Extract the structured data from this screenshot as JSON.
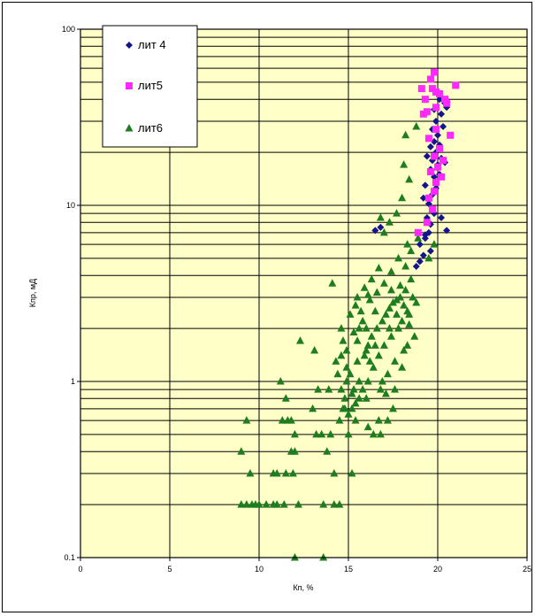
{
  "colors": {
    "plot_bg": "#ffffc8",
    "grid": "#000000",
    "lit4": "#14148c",
    "lit5": "#ff28ff",
    "lit6": "#1e7d1e"
  },
  "chart_data": {
    "type": "scatter",
    "xlabel": "Кп, %",
    "ylabel": "Кпр, мД",
    "xlim": [
      0,
      25
    ],
    "ylim": [
      0.1,
      100
    ],
    "y_scale": "log",
    "grid": true,
    "legend_position": "top-left",
    "x_ticks": [
      "0",
      "5",
      "10",
      "15",
      "20",
      "25"
    ],
    "y_ticks": [
      "0.1",
      "1",
      "10",
      "100"
    ],
    "series": [
      {
        "name": "лит 4",
        "marker": "diamond",
        "color": "#14148c",
        "points": [
          [
            16.5,
            7.2
          ],
          [
            16.8,
            7.5
          ],
          [
            18.8,
            4.5
          ],
          [
            19.0,
            4.8
          ],
          [
            19.2,
            5.2
          ],
          [
            19.0,
            6.0
          ],
          [
            19.3,
            6.5
          ],
          [
            19.5,
            7.0
          ],
          [
            19.6,
            7.8
          ],
          [
            19.4,
            8.5
          ],
          [
            19.8,
            9.0
          ],
          [
            19.5,
            10.2
          ],
          [
            19.2,
            11.0
          ],
          [
            19.7,
            11.5
          ],
          [
            19.9,
            12.5
          ],
          [
            19.3,
            13.0
          ],
          [
            19.8,
            14.5
          ],
          [
            20.1,
            15.0
          ],
          [
            19.6,
            16.0
          ],
          [
            20.0,
            17.0
          ],
          [
            19.7,
            18.0
          ],
          [
            20.2,
            18.5
          ],
          [
            20.4,
            17.5
          ],
          [
            19.4,
            19.0
          ],
          [
            19.9,
            20.0
          ],
          [
            19.6,
            21.5
          ],
          [
            20.1,
            22.0
          ],
          [
            19.8,
            23.0
          ],
          [
            19.5,
            24.0
          ],
          [
            20.0,
            25.0
          ],
          [
            19.7,
            27.0
          ],
          [
            20.3,
            28.0
          ],
          [
            19.9,
            30.0
          ],
          [
            20.2,
            33.0
          ],
          [
            19.8,
            35.0
          ],
          [
            20.4,
            38.0
          ],
          [
            20.1,
            40.0
          ],
          [
            20.5,
            36.0
          ],
          [
            20.2,
            8.5
          ],
          [
            20.5,
            7.2
          ],
          [
            19.6,
            5.5
          ],
          [
            19.3,
            6.8
          ]
        ]
      },
      {
        "name": "лит5",
        "marker": "square",
        "color": "#ff28ff",
        "points": [
          [
            18.9,
            7.0
          ],
          [
            19.4,
            8.0
          ],
          [
            19.7,
            9.5
          ],
          [
            19.5,
            11.0
          ],
          [
            19.8,
            12.0
          ],
          [
            19.9,
            13.5
          ],
          [
            20.2,
            14.5
          ],
          [
            19.6,
            15.5
          ],
          [
            20.0,
            16.5
          ],
          [
            20.3,
            18.0
          ],
          [
            19.8,
            19.0
          ],
          [
            20.1,
            21.0
          ],
          [
            19.5,
            24.0
          ],
          [
            20.7,
            25.0
          ],
          [
            19.9,
            27.0
          ],
          [
            19.2,
            33.0
          ],
          [
            19.4,
            34.0
          ],
          [
            19.9,
            36.0
          ],
          [
            20.5,
            38.0
          ],
          [
            19.1,
            46.0
          ],
          [
            19.7,
            46.0
          ],
          [
            19.9,
            44.0
          ],
          [
            20.1,
            43.0
          ],
          [
            21.0,
            48.0
          ],
          [
            19.6,
            52.0
          ],
          [
            19.8,
            57.0
          ],
          [
            20.4,
            40.0
          ],
          [
            19.3,
            40.0
          ]
        ]
      },
      {
        "name": "лит6",
        "marker": "triangle",
        "color": "#1e7d1e",
        "points": [
          [
            9.0,
            0.2
          ],
          [
            9.3,
            0.2
          ],
          [
            9.6,
            0.2
          ],
          [
            9.8,
            0.2
          ],
          [
            10.0,
            0.2
          ],
          [
            10.4,
            0.2
          ],
          [
            10.8,
            0.2
          ],
          [
            11.0,
            0.2
          ],
          [
            11.4,
            0.2
          ],
          [
            12.2,
            0.2
          ],
          [
            13.6,
            0.2
          ],
          [
            14.2,
            0.2
          ],
          [
            14.5,
            0.2
          ],
          [
            9.0,
            0.4
          ],
          [
            9.5,
            0.3
          ],
          [
            9.3,
            0.6
          ],
          [
            10.8,
            0.3
          ],
          [
            11.0,
            0.3
          ],
          [
            11.5,
            0.3
          ],
          [
            11.8,
            0.4
          ],
          [
            12.0,
            0.4
          ],
          [
            11.3,
            0.6
          ],
          [
            11.6,
            0.6
          ],
          [
            11.2,
            1.0
          ],
          [
            11.5,
            0.8
          ],
          [
            11.8,
            0.6
          ],
          [
            12.3,
            1.7
          ],
          [
            12.0,
            0.5
          ],
          [
            11.9,
            0.3
          ],
          [
            12.0,
            0.1
          ],
          [
            13.6,
            0.1
          ],
          [
            13.2,
            0.5
          ],
          [
            13.5,
            0.5
          ],
          [
            13.8,
            0.4
          ],
          [
            14.2,
            0.3
          ],
          [
            14.0,
            0.5
          ],
          [
            13.1,
            1.5
          ],
          [
            13.0,
            0.7
          ],
          [
            13.3,
            0.9
          ],
          [
            14.5,
            0.6
          ],
          [
            14.8,
            0.8
          ],
          [
            15.2,
            0.3
          ],
          [
            15.0,
            0.5
          ],
          [
            15.4,
            0.6
          ],
          [
            14.9,
            1.2
          ],
          [
            14.3,
            1.3
          ],
          [
            13.9,
            0.9
          ],
          [
            14.1,
            3.6
          ],
          [
            14.6,
            2.0
          ],
          [
            15.6,
            1.0
          ],
          [
            16.0,
            0.8
          ],
          [
            16.4,
            0.5
          ],
          [
            16.8,
            0.5
          ],
          [
            17.2,
            0.6
          ],
          [
            17.6,
            0.9
          ],
          [
            16.7,
            0.6
          ],
          [
            16.2,
            1.3
          ],
          [
            15.5,
            1.7
          ],
          [
            15.8,
            2.2
          ],
          [
            16.5,
            2.5
          ],
          [
            15.1,
            1.1
          ],
          [
            15.3,
            0.9
          ],
          [
            14.7,
            0.7
          ],
          [
            15.9,
            1.4
          ],
          [
            16.1,
            1.6
          ],
          [
            16.3,
            1.8
          ],
          [
            16.6,
            2.0
          ],
          [
            16.9,
            2.2
          ],
          [
            17.1,
            2.4
          ],
          [
            17.3,
            2.6
          ],
          [
            17.5,
            2.8
          ],
          [
            17.7,
            2.9
          ],
          [
            17.9,
            3.0
          ],
          [
            18.1,
            2.7
          ],
          [
            18.3,
            2.5
          ],
          [
            18.0,
            2.2
          ],
          [
            17.8,
            2.0
          ],
          [
            17.4,
            1.8
          ],
          [
            17.0,
            1.6
          ],
          [
            16.7,
            1.4
          ],
          [
            16.4,
            1.2
          ],
          [
            16.1,
            1.0
          ],
          [
            15.8,
            0.9
          ],
          [
            15.6,
            0.8
          ],
          [
            15.4,
            0.75
          ],
          [
            15.2,
            0.7
          ],
          [
            15.0,
            0.65
          ],
          [
            14.8,
            0.7
          ],
          [
            14.6,
            0.9
          ],
          [
            14.4,
            1.1
          ],
          [
            14.9,
            1.5
          ],
          [
            15.3,
            1.9
          ],
          [
            15.7,
            2.5
          ],
          [
            16.2,
            2.9
          ],
          [
            16.6,
            3.2
          ],
          [
            17.0,
            3.6
          ],
          [
            17.4,
            4.2
          ],
          [
            17.8,
            5.0
          ],
          [
            18.2,
            4.5
          ],
          [
            18.5,
            3.8
          ],
          [
            18.2,
            3.3
          ],
          [
            18.6,
            3.0
          ],
          [
            18.8,
            2.8
          ],
          [
            18.4,
            2.1
          ],
          [
            18.7,
            1.8
          ],
          [
            18.1,
            1.5
          ],
          [
            17.6,
            1.3
          ],
          [
            17.2,
            1.1
          ],
          [
            16.8,
            0.9
          ],
          [
            16.9,
            1.0
          ],
          [
            17.1,
            0.85
          ],
          [
            17.5,
            0.7
          ],
          [
            18.0,
            1.2
          ],
          [
            18.3,
            1.6
          ],
          [
            15.5,
            3.0
          ],
          [
            15.9,
            3.4
          ],
          [
            16.3,
            3.8
          ],
          [
            16.7,
            4.4
          ],
          [
            15.1,
            2.4
          ],
          [
            15.4,
            2.7
          ],
          [
            14.7,
            1.7
          ],
          [
            16.0,
            2.0
          ],
          [
            16.5,
            1.6
          ],
          [
            17.3,
            2.0
          ],
          [
            17.7,
            2.4
          ],
          [
            18.4,
            2.4
          ],
          [
            16.1,
            3.1
          ],
          [
            15.6,
            2.0
          ],
          [
            14.9,
            1.0
          ],
          [
            15.5,
            1.3
          ],
          [
            16.0,
            1.5
          ],
          [
            17.4,
            3.3
          ],
          [
            17.9,
            3.5
          ],
          [
            18.5,
            5.5
          ],
          [
            18.3,
            6.0
          ],
          [
            18.9,
            6.5
          ],
          [
            17.0,
            7.0
          ],
          [
            17.3,
            8.0
          ],
          [
            16.8,
            8.5
          ],
          [
            17.7,
            9.0
          ],
          [
            18.0,
            11.0
          ],
          [
            18.4,
            14.0
          ],
          [
            18.1,
            17.0
          ],
          [
            18.2,
            25.0
          ],
          [
            18.8,
            28.0
          ],
          [
            19.7,
            9.5
          ],
          [
            19.8,
            6.0
          ],
          [
            20.5,
            40.0
          ],
          [
            19.5,
            5.0
          ],
          [
            16.1,
            0.55
          ],
          [
            15.2,
            0.85
          ],
          [
            14.6,
            1.4
          ]
        ]
      }
    ]
  }
}
